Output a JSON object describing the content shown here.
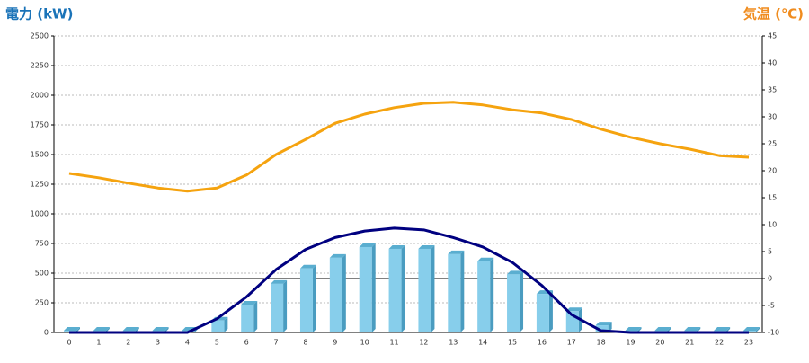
{
  "chart_data": {
    "type": "bar",
    "y_title": "電力 (kW)",
    "y2_title": "気温 (℃)",
    "categories": [
      "0",
      "1",
      "2",
      "3",
      "4",
      "5",
      "6",
      "7",
      "8",
      "9",
      "10",
      "11",
      "12",
      "13",
      "14",
      "15",
      "16",
      "17",
      "18",
      "19",
      "20",
      "21",
      "22",
      "23"
    ],
    "series": [
      {
        "type": "bar",
        "color": "#87ceeb",
        "values": [
          15,
          15,
          15,
          15,
          15,
          100,
          235,
          410,
          540,
          630,
          720,
          705,
          705,
          660,
          600,
          490,
          325,
          180,
          60,
          15,
          15,
          15,
          15,
          15
        ]
      },
      {
        "type": "line",
        "color": "#000080",
        "values": [
          0,
          0,
          0,
          0,
          0,
          115,
          300,
          530,
          700,
          800,
          855,
          880,
          865,
          800,
          720,
          590,
          395,
          150,
          15,
          0,
          0,
          0,
          0,
          0
        ]
      },
      {
        "type": "line",
        "color": "#f5a30f",
        "axis": "y2",
        "values": [
          19.5,
          18.7,
          17.7,
          16.8,
          16.2,
          16.8,
          19.2,
          23,
          25.8,
          28.8,
          30.5,
          31.7,
          32.5,
          32.7,
          32.2,
          31.3,
          30.7,
          29.5,
          27.7,
          26.2,
          25,
          24,
          22.8,
          22.5
        ]
      }
    ],
    "ylim": [
      0,
      2500
    ],
    "yticks": [
      0,
      250,
      500,
      750,
      1000,
      1250,
      1500,
      1750,
      2000,
      2250,
      2500
    ],
    "y2lim": [
      -10,
      45
    ],
    "y2ticks": [
      -10,
      -5,
      0,
      5,
      10,
      15,
      20,
      25,
      30,
      35,
      40,
      45
    ],
    "grid": true
  }
}
